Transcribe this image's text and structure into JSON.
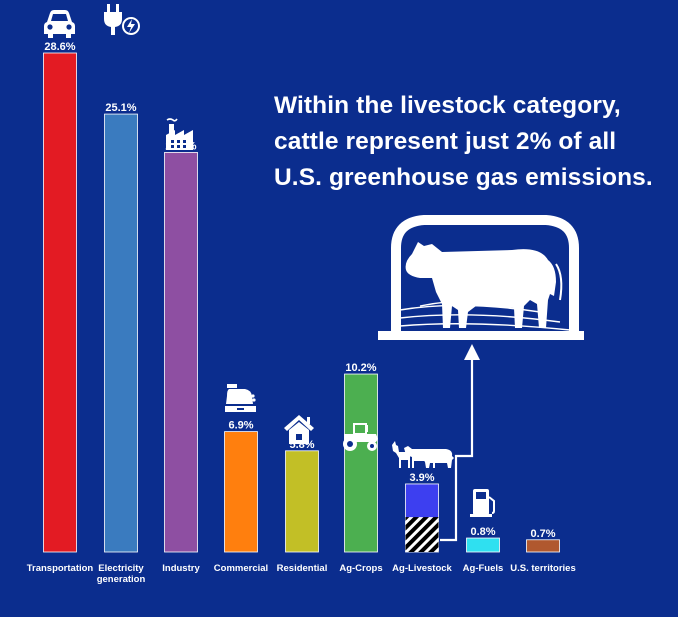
{
  "annotation": {
    "line1": "Within the livestock category,",
    "line2": "cattle represent just 2% of all",
    "line3": "U.S. greenhouse gas emissions."
  },
  "colors": {
    "background": "#0b2d8e",
    "arrow": "#ffffff",
    "cattle_hatch": "#000000"
  },
  "chart_data": {
    "type": "bar",
    "categories": [
      "Transportation",
      [
        "Electricity",
        "generation"
      ],
      "Industry",
      "Commercial",
      "Residential",
      "Ag-Crops",
      "Ag-Livestock",
      "Ag-Fuels",
      "U.S. territories"
    ],
    "values": [
      28.6,
      25.1,
      22.9,
      6.9,
      5.8,
      10.2,
      3.9,
      0.8,
      0.7
    ],
    "value_labels": [
      "28.6%",
      "25.1%",
      "22.9%",
      "6.9%",
      "5.8%",
      "10.2%",
      "3.9%",
      "0.8%",
      "0.7%"
    ],
    "colors": [
      "#e31b23",
      "#3a7bbf",
      "#8e4fa2",
      "#ff7f0e",
      "#c2bf26",
      "#4caf50",
      "#3d3ff0",
      "#2fe0f0",
      "#b0582f"
    ],
    "icons": [
      "car-icon",
      "plug-icon",
      "factory-icon",
      "cash-register-icon",
      "house-icon",
      "tractor-icon",
      "livestock-icon",
      "fuel-pump-icon",
      ""
    ],
    "cattle_share_of_livestock": 2.0,
    "unit": "% of U.S. greenhouse gas emissions",
    "ylim": [
      0,
      28.6
    ],
    "grid": false,
    "legend": "none"
  }
}
